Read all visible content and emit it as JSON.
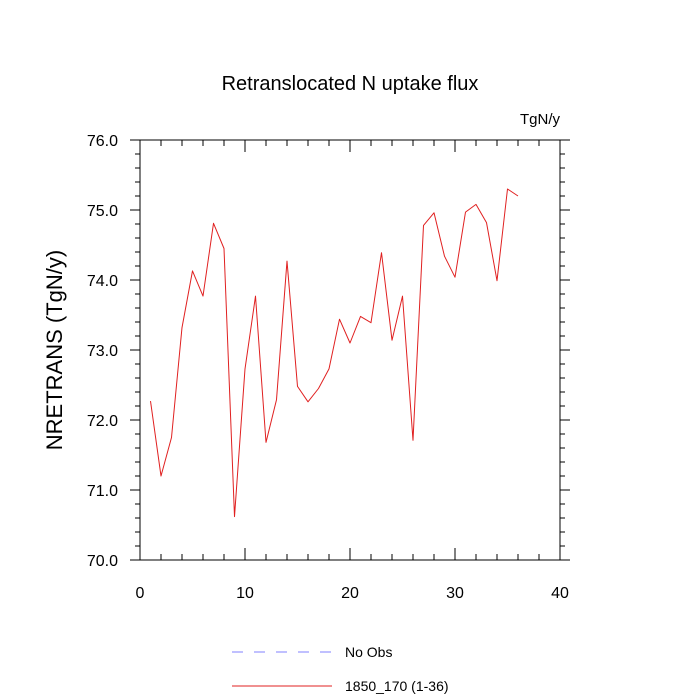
{
  "chart_data": {
    "type": "line",
    "title": "Retranslocated N uptake flux",
    "units_label": "TgN/y",
    "xlabel": "",
    "ylabel": "NRETRANS  (TgN/y)",
    "xlim": [
      0,
      40
    ],
    "ylim": [
      70,
      76
    ],
    "x_ticks": [
      "0",
      "10",
      "20",
      "30",
      "40"
    ],
    "y_ticks": [
      "70.0",
      "71.0",
      "72.0",
      "73.0",
      "74.0",
      "75.0",
      "76.0"
    ],
    "grid": false,
    "legend_position": "bottom-center",
    "legend": [
      {
        "name": "No Obs",
        "color": "#8080ff",
        "style": "dashed"
      },
      {
        "name": "1850_170 (1-36)",
        "color": "#e02020",
        "style": "solid"
      }
    ],
    "series": [
      {
        "name": "1850_170 (1-36)",
        "color": "#e02020",
        "x": [
          1,
          2,
          3,
          4,
          5,
          6,
          7,
          8,
          9,
          10,
          11,
          12,
          13,
          14,
          15,
          16,
          17,
          18,
          19,
          20,
          21,
          22,
          23,
          24,
          25,
          26,
          27,
          28,
          29,
          30,
          31,
          32,
          33,
          34,
          35,
          36
        ],
        "values": [
          72.27,
          71.2,
          71.75,
          73.32,
          74.13,
          73.77,
          74.81,
          74.45,
          70.62,
          72.73,
          73.77,
          71.68,
          72.29,
          74.27,
          72.48,
          72.26,
          72.45,
          72.73,
          73.44,
          73.1,
          73.48,
          73.39,
          74.39,
          73.14,
          73.77,
          71.71,
          74.78,
          74.96,
          74.34,
          74.04,
          74.97,
          75.08,
          74.82,
          73.99,
          75.3,
          75.2
        ]
      }
    ]
  }
}
